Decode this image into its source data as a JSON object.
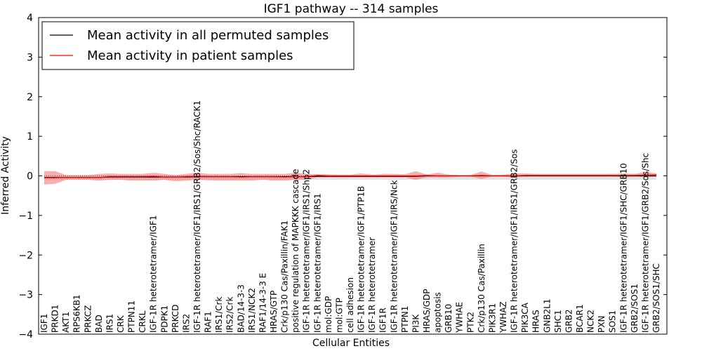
{
  "chart_data": {
    "type": "line",
    "title": "IGF1 pathway -- 314 samples",
    "xlabel": "Cellular Entities",
    "ylabel": "Inferred Activity",
    "ylim": [
      -4,
      4
    ],
    "yticks": [
      -4,
      -3,
      -2,
      -1,
      0,
      1,
      2,
      3,
      4
    ],
    "ytick_labels": [
      "−4",
      "−3",
      "−2",
      "−1",
      "0",
      "1",
      "2",
      "3",
      "4"
    ],
    "legend_position": "upper-left",
    "categories": [
      "IGF1",
      "PRKD1",
      "AKT1",
      "RPS6KB1",
      "PRKCZ",
      "BAD",
      "IRS1",
      "CRK",
      "PTPN11",
      "CRKL",
      "IGF-1R heterotetramer/IGF1",
      "PDPK1",
      "PRKCD",
      "IRS2",
      "IGF-1R heterotetramer/IGF1/IRS1/GRB2/Sos/Shc/RACK1",
      "RAF1",
      "IRS1/Crk",
      "IRS2/Crk",
      "BAD/14-3-3",
      "IRS1/NCK2",
      "RAF1/14-3-3 E",
      "HRAS/GTP",
      "Crk/p130 Cas/Paxillin/FAK1",
      "positive regulation of MAPKKK cascade",
      "IGF-1R heterotetramer/IGF1/IRS1/Shp2",
      "IGF-1R heterotetramer/IGF1/IRS1",
      "mol:GDP",
      "mol:GTP",
      "cell adhesion",
      "IGF-1R heterotetramer/IGF1/PTP1B",
      "IGF-1R heterotetramer",
      "IGF1R",
      "IGF-1R heterotetramer/IGF1/IRS/Nck",
      "PTPN1",
      "PI3K",
      "HRAS/GDP",
      "apoptosis",
      "GRB10",
      "YWHAE",
      "PTK2",
      "Crk/p130 Cas/Paxillin",
      "PIK3R1",
      "YWHAZ",
      "IGF-1R heterotetramer/IGF1/IRS1/GRB2/Sos",
      "PIK3CA",
      "HRAS",
      "GNB2L1",
      "SHC1",
      "GRB2",
      "BCAR1",
      "NCK2",
      "PXN",
      "SOS1",
      "IGF-1R heterotetramer/IGF1/SHC/GRB10",
      "GRB2/SOS1",
      "IGF-1R heterotetramer/IGF1/GRB2/Sos/Shc",
      "GRB2/SOS1/SHC"
    ],
    "series": [
      {
        "name": "Mean activity in all permuted samples",
        "color": "#000000",
        "values": [
          -0.04,
          -0.04,
          -0.04,
          -0.04,
          -0.04,
          -0.04,
          -0.03,
          -0.03,
          -0.03,
          -0.03,
          -0.03,
          -0.03,
          -0.03,
          -0.03,
          -0.02,
          -0.02,
          -0.02,
          -0.02,
          -0.02,
          -0.02,
          -0.02,
          -0.02,
          -0.02,
          -0.02,
          -0.02,
          -0.01,
          -0.01,
          -0.01,
          -0.01,
          -0.01,
          -0.01,
          -0.01,
          -0.01,
          -0.01,
          -0.01,
          0.0,
          0.0,
          0.0,
          0.0,
          0.0,
          0.0,
          0.0,
          0.0,
          0.0,
          0.0,
          0.0,
          0.0,
          0.0,
          0.0,
          0.0,
          0.0,
          0.0,
          0.0,
          0.0,
          0.0,
          0.0,
          0.0
        ],
        "band_upper": [
          0.0,
          0.0,
          0.0,
          0.0,
          0.0,
          0.0,
          0.0,
          0.0,
          0.0,
          0.0,
          0.0,
          0.0,
          0.0,
          0.0,
          0.0,
          0.0,
          0.0,
          0.0,
          0.0,
          0.0,
          0.0,
          0.0,
          0.0,
          0.0,
          0.0,
          0.0,
          0.0,
          0.0,
          0.0,
          0.0,
          0.0,
          0.0,
          0.0,
          0.0,
          0.0,
          0.0,
          0.0,
          0.0,
          0.0,
          0.0,
          0.0,
          0.0,
          0.0,
          0.0,
          0.0,
          0.0,
          0.0,
          0.0,
          0.0,
          0.0,
          0.0,
          0.0,
          0.0,
          0.0,
          0.0,
          0.0,
          0.0
        ],
        "band_lower": [
          -0.1,
          -0.1,
          -0.1,
          -0.1,
          -0.1,
          -0.1,
          -0.1,
          -0.1,
          -0.1,
          -0.1,
          -0.1,
          -0.1,
          -0.1,
          -0.1,
          -0.1,
          -0.1,
          -0.1,
          -0.1,
          -0.1,
          -0.1,
          -0.1,
          -0.1,
          -0.1,
          -0.1,
          -0.1,
          -0.1,
          -0.1,
          -0.1,
          -0.1,
          -0.1,
          -0.1,
          -0.1,
          -0.1,
          -0.1,
          -0.1,
          -0.1,
          -0.1,
          -0.1,
          -0.1,
          -0.1,
          -0.1,
          -0.1,
          -0.1,
          -0.1,
          -0.1,
          -0.1,
          -0.1,
          -0.1,
          -0.1,
          -0.1,
          -0.1,
          -0.1,
          -0.1,
          -0.1,
          -0.1,
          -0.1,
          -0.1
        ]
      },
      {
        "name": "Mean activity in patient samples",
        "color": "#ff0000",
        "values": [
          -0.05,
          -0.05,
          -0.04,
          -0.04,
          -0.04,
          -0.04,
          -0.02,
          -0.02,
          -0.02,
          -0.02,
          -0.01,
          -0.03,
          -0.03,
          -0.02,
          -0.01,
          -0.02,
          -0.02,
          -0.02,
          -0.03,
          -0.02,
          -0.02,
          -0.02,
          -0.03,
          -0.02,
          -0.02,
          0.01,
          0.0,
          0.0,
          0.0,
          0.0,
          0.0,
          0.0,
          0.0,
          0.0,
          0.0,
          0.01,
          0.0,
          0.0,
          0.0,
          0.0,
          0.01,
          0.0,
          0.0,
          0.0,
          0.01,
          0.01,
          0.01,
          0.01,
          0.01,
          0.01,
          0.01,
          0.01,
          0.01,
          0.01,
          0.01,
          0.02,
          0.03
        ],
        "band_upper": [
          0.12,
          0.12,
          0.02,
          0.02,
          0.02,
          0.05,
          0.06,
          0.05,
          0.05,
          0.05,
          0.08,
          0.05,
          0.02,
          0.05,
          0.08,
          0.05,
          0.05,
          0.05,
          0.07,
          0.05,
          0.05,
          0.05,
          0.05,
          0.08,
          0.05,
          0.04,
          0.04,
          0.03,
          0.03,
          0.06,
          0.03,
          0.05,
          0.05,
          0.04,
          0.12,
          0.03,
          0.08,
          0.03,
          0.02,
          0.02,
          0.11,
          0.02,
          0.03,
          0.06,
          0.06,
          0.05,
          0.05,
          0.05,
          0.05,
          0.05,
          0.05,
          0.05,
          0.05,
          0.06,
          0.05,
          0.1,
          0.06
        ],
        "band_lower": [
          -0.22,
          -0.2,
          -0.1,
          -0.1,
          -0.1,
          -0.12,
          -0.1,
          -0.1,
          -0.12,
          -0.12,
          -0.12,
          -0.1,
          -0.14,
          -0.12,
          -0.1,
          -0.11,
          -0.12,
          -0.12,
          -0.12,
          -0.12,
          -0.1,
          -0.12,
          -0.12,
          -0.1,
          -0.1,
          -0.04,
          -0.04,
          -0.04,
          -0.04,
          -0.04,
          -0.04,
          -0.04,
          -0.04,
          -0.04,
          -0.1,
          -0.04,
          -0.04,
          -0.04,
          -0.02,
          -0.02,
          -0.08,
          -0.02,
          -0.02,
          -0.04,
          -0.02,
          -0.02,
          -0.02,
          -0.02,
          -0.02,
          -0.02,
          -0.02,
          -0.02,
          -0.02,
          -0.03,
          -0.02,
          -0.03,
          -0.02
        ]
      }
    ]
  }
}
